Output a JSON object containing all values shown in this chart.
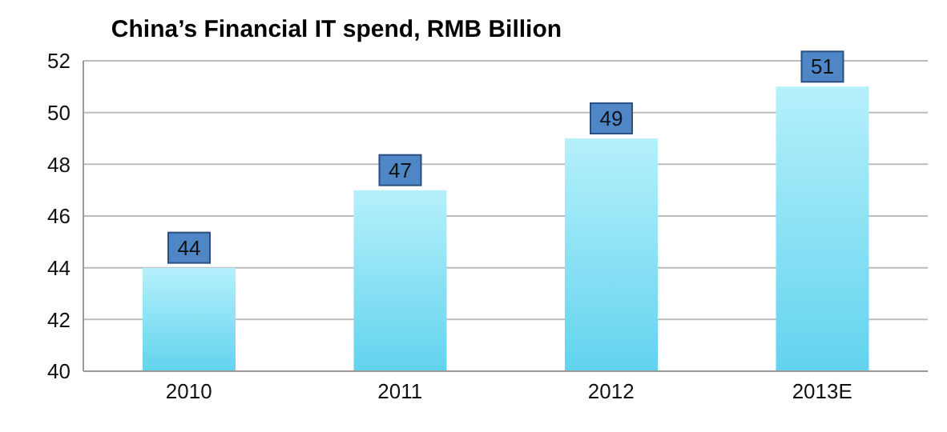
{
  "chart_data": {
    "type": "bar",
    "title": "China’s Financial IT spend, RMB Billion",
    "categories": [
      "2010",
      "2011",
      "2012",
      "2013E"
    ],
    "values": [
      44,
      47,
      49,
      51
    ],
    "color": "#62d3ee",
    "ylim": [
      40,
      52
    ],
    "yticks": [
      40,
      42,
      44,
      46,
      48,
      50,
      52
    ],
    "grid": "y",
    "data_labels": true
  }
}
